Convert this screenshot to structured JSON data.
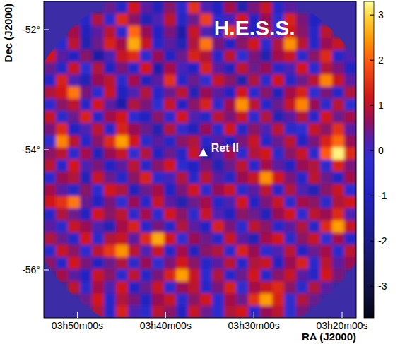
{
  "chart_data": {
    "type": "heatmap",
    "x_label": "RA (J2000)",
    "y_label": "Dec (J2000)",
    "xlim": [
      58.45,
      49.6
    ],
    "ylim": [
      -51.53,
      -56.8
    ],
    "xticks": [
      {
        "value": 57.5,
        "label": "03h50m00s"
      },
      {
        "value": 55.0,
        "label": "03h40m00s"
      },
      {
        "value": 52.5,
        "label": "03h30m00s"
      },
      {
        "value": 50.0,
        "label": "03h20m00s"
      }
    ],
    "yticks": [
      {
        "value": -52,
        "label": "-52°"
      },
      {
        "value": -54,
        "label": "-54°"
      },
      {
        "value": -56,
        "label": "-56°"
      }
    ],
    "colorbar": {
      "range": [
        -3.7,
        3.3
      ],
      "ticks": [
        -3,
        -2,
        -1,
        0,
        1,
        2,
        3
      ]
    },
    "field_of_view": {
      "ra": 54.0,
      "dec": -54.19,
      "radius": 3.08
    },
    "annotations": [
      {
        "text": "H.E.S.S.",
        "x": 52.48,
        "y": -52.1
      },
      {
        "text": "Ret II",
        "x": 53.93,
        "y": -54.05,
        "marker": "triangle"
      }
    ],
    "cells": [
      [
        null,
        null,
        null,
        null,
        null,
        0.4,
        -0.8,
        1.2,
        0.3,
        -1.1,
        0.6,
        -0.4,
        1.5,
        0.2,
        -0.9,
        0.8,
        -1.3,
        0.5,
        1.1,
        -0.6,
        0.3,
        null,
        null,
        null,
        null,
        null
      ],
      [
        null,
        null,
        null,
        -0.7,
        0.9,
        -0.3,
        1.4,
        0.6,
        -1.2,
        0.2,
        1.0,
        -0.8,
        0.4,
        1.7,
        -0.5,
        0.1,
        1.2,
        -1.0,
        0.7,
        -0.2,
        1.3,
        0.5,
        -0.9,
        null,
        null,
        null
      ],
      [
        null,
        null,
        0.8,
        -1.1,
        0.3,
        1.0,
        -0.4,
        2.1,
        0.7,
        -0.9,
        0.5,
        -1.4,
        1.1,
        0.2,
        -0.6,
        1.6,
        0.4,
        -1.0,
        0.9,
        -0.3,
        1.2,
        0.6,
        -0.8,
        1.0,
        null,
        null
      ],
      [
        null,
        -0.5,
        1.0,
        -1.3,
        0.4,
        1.3,
        0.8,
        2.6,
        1.1,
        -0.7,
        0.3,
        -1.2,
        0.9,
        2.2,
        0.5,
        -0.9,
        0.6,
        1.2,
        -0.4,
        0.9,
        2.4,
        1.0,
        -0.6,
        0.7,
        1.1,
        null
      ],
      [
        1.2,
        0.3,
        -0.9,
        0.6,
        -1.5,
        0.2,
        1.1,
        1.4,
        -0.3,
        0.7,
        -1.0,
        0.4,
        1.3,
        0.9,
        -0.7,
        1.0,
        -0.2,
        0.5,
        -1.3,
        0.8,
        1.1,
        -0.5,
        0.6,
        1.4,
        -0.8,
        0.2
      ],
      [
        0.4,
        -0.8,
        1.1,
        -0.2,
        0.9,
        -1.0,
        0.5,
        -0.6,
        1.2,
        -1.4,
        0.8,
        0.1,
        -0.9,
        1.3,
        0.3,
        -1.1,
        1.0,
        0.4,
        0.7,
        -0.6,
        0.2,
        1.2,
        -0.3,
        0.9,
        0.5,
        -1.0
      ],
      [
        -0.6,
        1.3,
        0.2,
        -1.2,
        0.7,
        1.0,
        -0.4,
        0.8,
        -1.1,
        0.3,
        1.5,
        -0.7,
        0.4,
        -0.2,
        1.1,
        0.6,
        -1.3,
        0.9,
        -0.5,
        1.2,
        -0.8,
        0.4,
        1.0,
        2.3,
        1.1,
        0.3
      ],
      [
        0.9,
        1.2,
        2.2,
        0.5,
        -0.3,
        1.1,
        -1.0,
        0.2,
        0.9,
        -0.6,
        0.4,
        1.0,
        -1.2,
        0.7,
        0.3,
        -0.9,
        1.2,
        -0.4,
        0.6,
        -1.1,
        0.8,
        1.3,
        -0.2,
        0.5,
        -0.7,
        0.9
      ],
      [
        -0.3,
        0.6,
        1.0,
        -0.8,
        1.2,
        0.3,
        -1.4,
        0.9,
        0.5,
        -0.2,
        1.1,
        -0.9,
        0.6,
        1.3,
        -0.5,
        0.8,
        2.4,
        1.0,
        -0.6,
        0.4,
        1.1,
        2.3,
        0.7,
        -0.4,
        1.0,
        -0.2
      ],
      [
        1.1,
        -0.5,
        0.4,
        1.3,
        -0.7,
        0.8,
        1.2,
        -0.3,
        -1.0,
        0.6,
        -0.4,
        1.2,
        0.2,
        -0.8,
        1.0,
        0.5,
        1.1,
        -0.3,
        0.9,
        -1.2,
        0.3,
        0.9,
        -0.6,
        1.2,
        0.4,
        0.8
      ],
      [
        0.5,
        1.4,
        -0.9,
        0.2,
        1.0,
        -0.6,
        1.3,
        0.7,
        0.4,
        -1.3,
        0.9,
        -0.1,
        -1.1,
        0.7,
        -0.4,
        1.2,
        -0.8,
        0.6,
        0.2,
        1.0,
        -0.5,
        -0.2,
        1.1,
        0.6,
        1.5,
        0.3
      ],
      [
        -0.2,
        2.3,
        1.0,
        -0.7,
        0.6,
        1.4,
        2.5,
        1.2,
        -0.5,
        0.3,
        -0.8,
        0.6,
        0.9,
        -0.6,
        0.3,
        -1.0,
        0.5,
        1.1,
        -0.7,
        0.4,
        1.0,
        -0.9,
        0.5,
        1.3,
        2.1,
        0.7
      ],
      [
        0.6,
        1.0,
        -0.4,
        0.8,
        -1.1,
        0.7,
        1.1,
        -0.2,
        0.9,
        -1.0,
        0.4,
        -0.7,
        1.1,
        -1.4,
        0.2,
        0.8,
        -0.3,
        0.9,
        1.2,
        -0.5,
        0.6,
        1.1,
        -0.4,
        2.0,
        3.2,
        1.4
      ],
      [
        1.0,
        -0.6,
        1.2,
        0.2,
        0.5,
        -0.9,
        0.3,
        1.0,
        -0.8,
        0.6,
        1.2,
        -0.3,
        -0.9,
        0.5,
        -1.2,
        0.4,
        1.0,
        -0.6,
        0.8,
        0.3,
        -1.0,
        0.7,
        0.9,
        -0.3,
        1.3,
        0.5
      ],
      [
        -0.4,
        0.7,
        0.9,
        -1.2,
        1.1,
        0.4,
        -0.7,
        0.6,
        1.3,
        -0.5,
        0.1,
        0.9,
        -0.6,
        1.0,
        0.3,
        -0.8,
        0.7,
        1.1,
        2.4,
        1.2,
        0.5,
        -0.6,
        1.0,
        0.4,
        -0.9,
        0.8
      ],
      [
        0.8,
        0.3,
        -0.8,
        0.6,
        -0.3,
        1.2,
        0.9,
        -1.1,
        0.4,
        0.8,
        -0.9,
        0.5,
        1.2,
        -0.4,
        0.7,
        1.1,
        -0.5,
        0.3,
        1.0,
        -0.7,
        0.9,
        0.2,
        -1.2,
        0.6,
        1.1,
        -0.3
      ],
      [
        1.2,
        1.5,
        2.2,
        0.4,
        -0.9,
        0.5,
        -0.2,
        0.7,
        -0.6,
        1.1,
        0.3,
        -1.3,
        0.4,
        0.8,
        -0.7,
        0.2,
        1.2,
        -0.9,
        0.5,
        1.1,
        -0.4,
        0.8,
        0.6,
        -0.5,
        0.9,
        1.2
      ],
      [
        -0.7,
        0.9,
        0.4,
        -1.0,
        1.2,
        0.6,
        1.0,
        -0.4,
        0.8,
        -0.3,
        1.2,
        0.6,
        -0.5,
        1.1,
        0.2,
        -1.0,
        0.6,
        0.4,
        -1.1,
        0.7,
        1.2,
        -0.3,
        1.0,
        0.7,
        1.4,
        0.2
      ],
      [
        0.3,
        -0.5,
        1.1,
        0.7,
        0.2,
        -1.2,
        0.8,
        1.3,
        -0.7,
        0.5,
        -0.8,
        0.9,
        0.3,
        -0.9,
        1.3,
        0.5,
        -0.4,
        1.0,
        0.6,
        -0.6,
        0.3,
        0.9,
        -0.8,
        1.4,
        2.5,
        1.1
      ],
      [
        0.9,
        0.4,
        -0.6,
        1.2,
        -0.4,
        0.9,
        1.1,
        0.3,
        1.4,
        2.6,
        1.2,
        -0.2,
        0.7,
        0.4,
        -0.8,
        1.1,
        0.3,
        -1.2,
        0.8,
        1.2,
        -0.5,
        0.6,
        1.1,
        -0.2,
        0.8,
        -0.6
      ],
      [
        -0.5,
        1.1,
        0.6,
        -0.3,
        1.0,
        1.6,
        2.4,
        1.0,
        0.2,
        1.1,
        -0.6,
        0.8,
        -1.1,
        0.6,
        0.9,
        -0.4,
        1.3,
        0.7,
        -0.3,
        0.2,
        1.0,
        -0.9,
        0.4,
        0.8,
        -0.4,
        1.0
      ],
      [
        0.6,
        -0.8,
        1.2,
        0.5,
        -1.0,
        0.4,
        0.9,
        -0.5,
        0.7,
        -0.2,
        0.5,
        1.2,
        0.6,
        -0.7,
        0.3,
        1.0,
        -0.6,
        0.9,
        1.1,
        -1.0,
        0.7,
        1.3,
        -0.4,
        1.0,
        0.3,
        0.7
      ],
      [
        null,
        0.8,
        0.3,
        -0.9,
        1.1,
        0.6,
        -0.4,
        1.0,
        -0.8,
        0.5,
        1.3,
        2.5,
        1.1,
        -0.3,
        0.9,
        -0.6,
        0.4,
        1.2,
        -0.8,
        0.6,
        1.1,
        0.3,
        -0.7,
        1.2,
        0.5,
        null
      ],
      [
        null,
        null,
        1.0,
        -0.5,
        0.8,
        0.2,
        1.2,
        -0.9,
        0.4,
        1.1,
        -0.3,
        0.7,
        1.0,
        -0.6,
        0.5,
        1.3,
        -0.2,
        0.8,
        1.1,
        1.4,
        0.6,
        -0.5,
        0.9,
        0.3,
        null,
        null
      ],
      [
        null,
        null,
        null,
        0.4,
        1.2,
        -0.6,
        0.9,
        0.5,
        -1.0,
        0.7,
        1.1,
        -0.4,
        0.6,
        1.2,
        -0.3,
        0.8,
        0.4,
        1.5,
        2.5,
        1.3,
        -0.2,
        0.9,
        0.4,
        null,
        null,
        null
      ],
      [
        null,
        null,
        null,
        null,
        0.9,
        -0.7,
        1.3,
        0.2,
        -0.5,
        1.0,
        0.6,
        -0.9,
        1.1,
        0.4,
        -0.3,
        0.9,
        1.2,
        -0.6,
        0.7,
        1.0,
        -0.2,
        0.5,
        null,
        null,
        null,
        null
      ]
    ]
  }
}
